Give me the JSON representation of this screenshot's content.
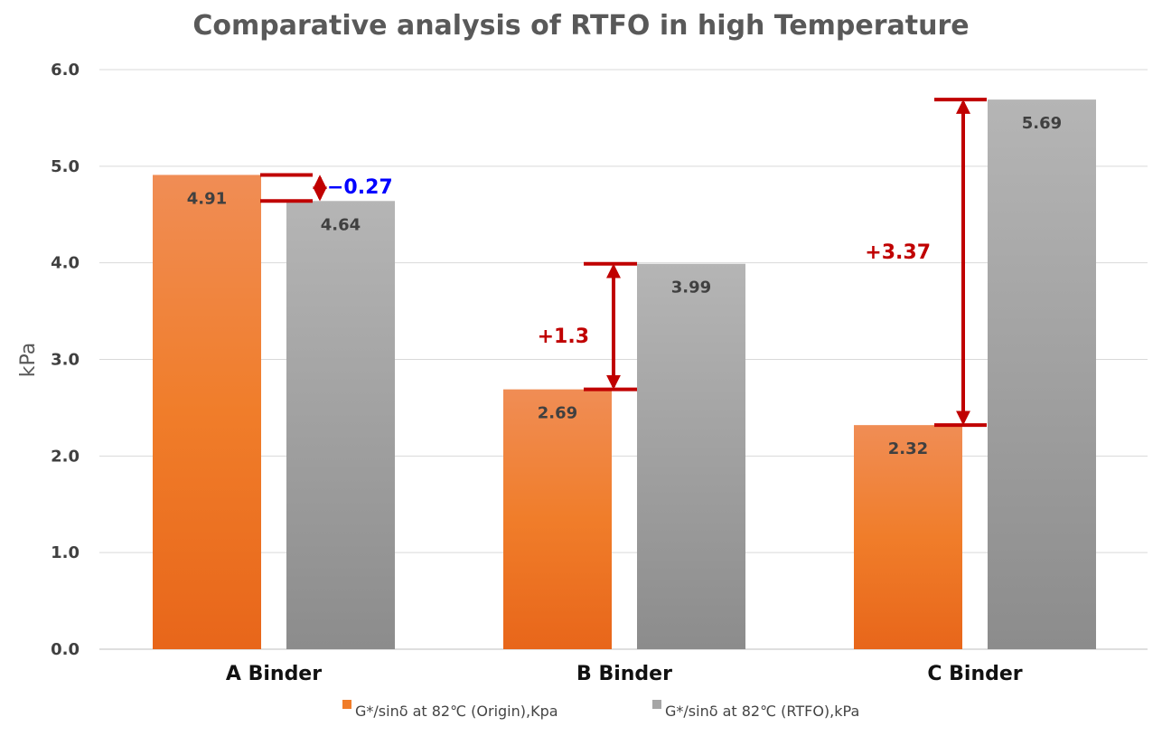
{
  "chart_data": {
    "type": "bar",
    "title": "Comparative analysis of RTFO in high Temperature",
    "xlabel": "",
    "ylabel": "kPa",
    "ylim": [
      0,
      6
    ],
    "yticks": [
      "0.0",
      "1.0",
      "2.0",
      "3.0",
      "4.0",
      "5.0",
      "6.0"
    ],
    "grid": true,
    "legend_position": "bottom",
    "categories": [
      "A Binder",
      "B Binder",
      "C Binder"
    ],
    "series": [
      {
        "name": "G*/sinδ at 82℃ (Origin),Kpa",
        "color": "#f07d2a",
        "values": [
          4.91,
          2.69,
          2.32
        ],
        "labels": [
          "4.91",
          "2.69",
          "2.32"
        ]
      },
      {
        "name": "G*/sinδ at 82℃ (RTFO),kPa",
        "color": "#a6a6a6",
        "values": [
          4.64,
          3.99,
          5.69
        ],
        "labels": [
          "4.64",
          "3.99",
          "5.69"
        ]
      }
    ],
    "annotations": [
      {
        "category": "A Binder",
        "text": "−0.27",
        "color": "#0000ff",
        "from": 4.91,
        "to": 4.64
      },
      {
        "category": "B Binder",
        "text": "+1.3",
        "color": "#c00000",
        "from": 2.69,
        "to": 3.99
      },
      {
        "category": "C Binder",
        "text": "+3.37",
        "color": "#c00000",
        "from": 2.32,
        "to": 5.69
      }
    ]
  }
}
